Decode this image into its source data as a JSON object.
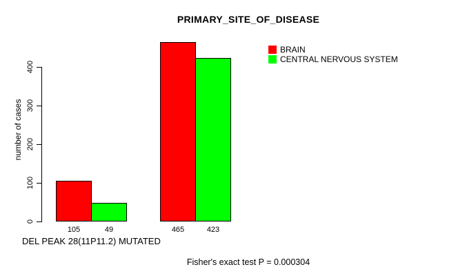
{
  "chart_data": {
    "type": "bar",
    "title": "PRIMARY_SITE_OF_DISEASE",
    "ylabel": "number of cases",
    "xlabel": "DEL PEAK 28(11P11.2) MUTATED",
    "footer": "Fisher's exact test P = 0.000304",
    "ylim": [
      0,
      400
    ],
    "yticks": [
      0,
      100,
      200,
      300,
      400
    ],
    "n_groups": 2,
    "series": [
      {
        "name": "BRAIN",
        "color": "#ff0000",
        "values": [
          105,
          465
        ]
      },
      {
        "name": "CENTRAL NERVOUS SYSTEM",
        "color": "#00ff00",
        "values": [
          49,
          423
        ]
      }
    ],
    "bar_value_labels": [
      [
        "105",
        "465"
      ],
      [
        "49",
        "423"
      ]
    ],
    "legend_position": "topright",
    "grid": false,
    "background": "#ffffff",
    "axis_color": "#000000"
  }
}
